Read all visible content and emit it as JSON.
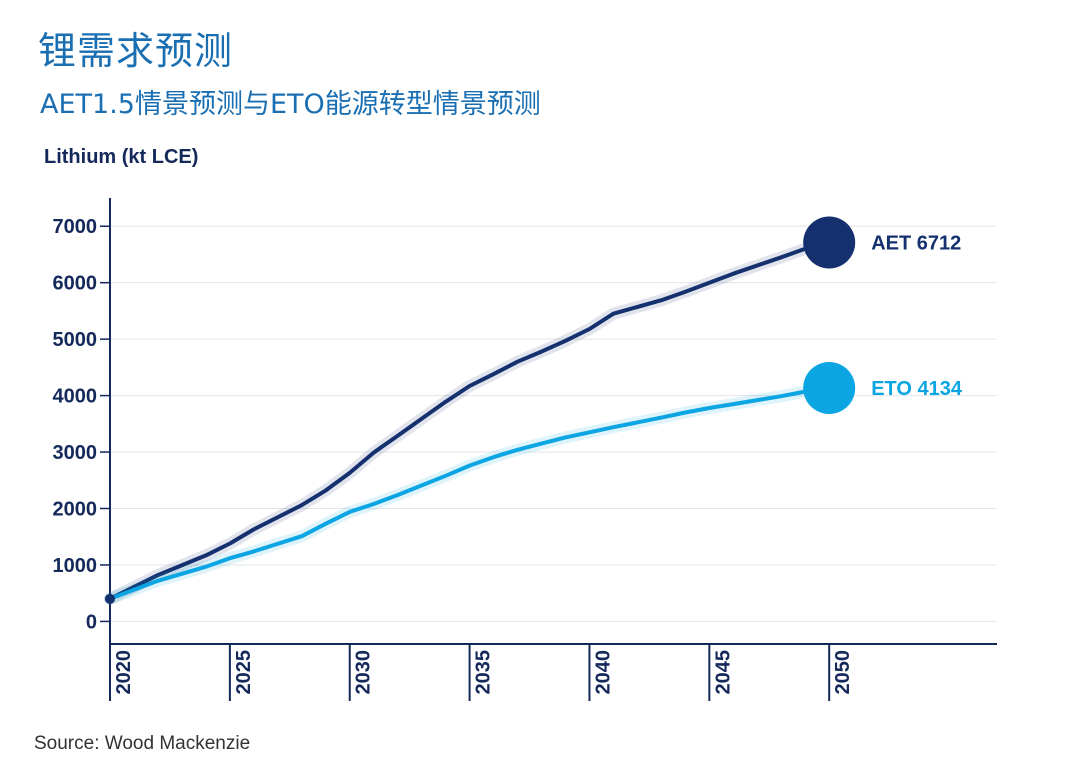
{
  "title": "锂需求预测",
  "subtitle": "AET1.5情景预测与ETO能源转型情景预测",
  "source": "Source: Wood Mackenzie",
  "chart_data": {
    "type": "line",
    "ylabel": "Lithium (kt LCE)",
    "xlabel": "",
    "xlim": [
      2020,
      2057
    ],
    "ylim": [
      -400,
      7500
    ],
    "x_ticks": [
      2020,
      2025,
      2030,
      2035,
      2040,
      2045,
      2050
    ],
    "y_ticks": [
      0,
      1000,
      2000,
      3000,
      4000,
      5000,
      6000,
      7000
    ],
    "grid": true,
    "series": [
      {
        "name": "AET",
        "end_label": "AET 6712",
        "color": "#14306e",
        "x": [
          2020,
          2022,
          2024,
          2025,
          2026,
          2028,
          2029,
          2030,
          2031,
          2032,
          2034,
          2035,
          2036,
          2037,
          2038,
          2039,
          2040,
          2041,
          2043,
          2044,
          2045,
          2046,
          2048,
          2049,
          2050
        ],
        "values": [
          400,
          820,
          1170,
          1380,
          1630,
          2060,
          2320,
          2630,
          2990,
          3290,
          3890,
          4170,
          4380,
          4600,
          4780,
          4970,
          5180,
          5450,
          5690,
          5840,
          6000,
          6160,
          6450,
          6600,
          6712
        ]
      },
      {
        "name": "ETO",
        "end_label": "ETO 4134",
        "color": "#0aa5e2",
        "x": [
          2020,
          2022,
          2024,
          2025,
          2026,
          2028,
          2029,
          2030,
          2031,
          2032,
          2034,
          2035,
          2036,
          2037,
          2038,
          2039,
          2040,
          2041,
          2043,
          2044,
          2045,
          2046,
          2048,
          2049,
          2050
        ],
        "values": [
          400,
          720,
          970,
          1120,
          1240,
          1510,
          1730,
          1940,
          2080,
          2240,
          2580,
          2760,
          2910,
          3040,
          3150,
          3260,
          3350,
          3440,
          3610,
          3700,
          3780,
          3850,
          3990,
          4070,
          4134
        ]
      }
    ]
  }
}
